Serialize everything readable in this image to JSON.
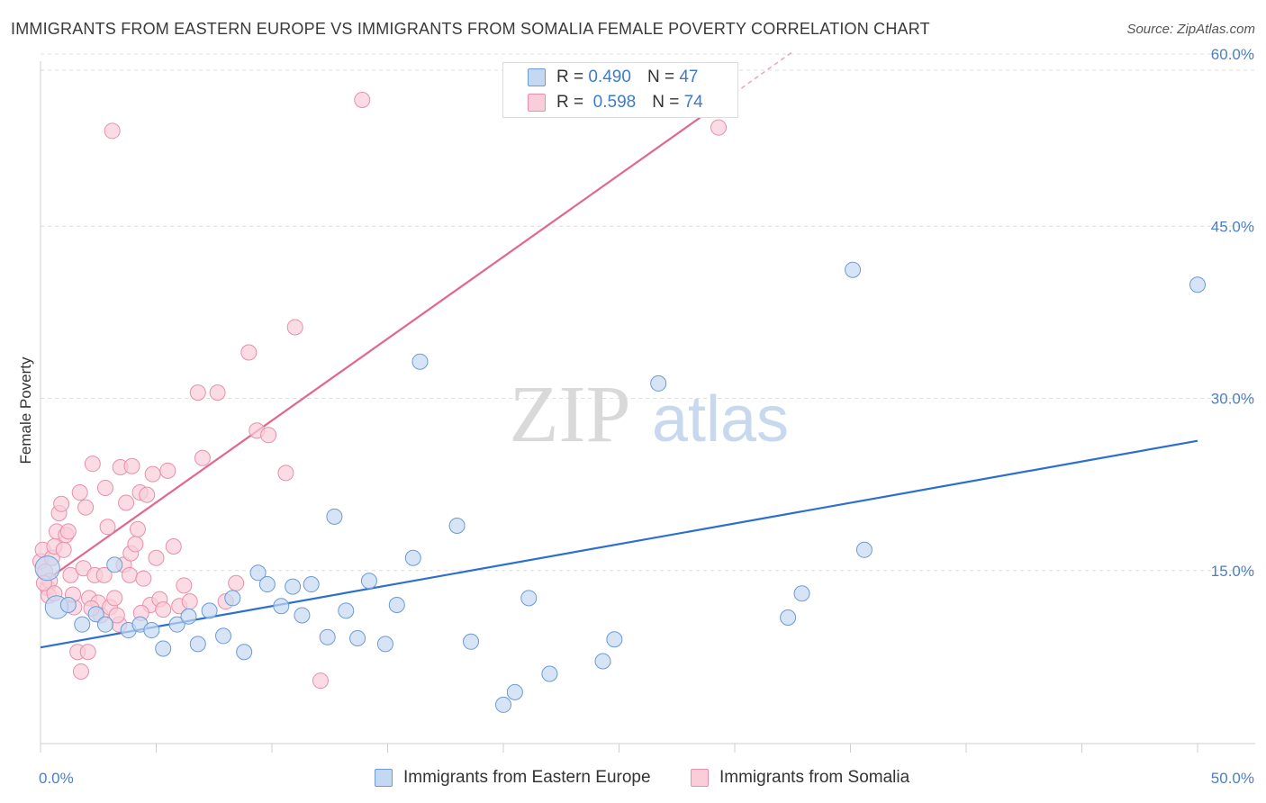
{
  "header": {
    "title": "IMMIGRANTS FROM EASTERN EUROPE VS IMMIGRANTS FROM SOMALIA FEMALE POVERTY CORRELATION CHART",
    "source": "Source: ZipAtlas.com"
  },
  "legend": {
    "r_label": "R =",
    "n_label": "N =",
    "rows": [
      {
        "r": "0.490",
        "n": "47"
      },
      {
        "r": "0.598",
        "n": "74"
      }
    ]
  },
  "watermark": {
    "zip": "ZIP",
    "atlas": "atlas"
  },
  "colors": {
    "blue_fill": "#c5d8f2",
    "blue_stroke": "#6b9bd8",
    "blue_line": "#2b6fcf",
    "pink_fill": "#f9cdd9",
    "pink_stroke": "#e98fab",
    "pink_line": "#e2678f"
  },
  "chart_data": {
    "type": "scatter",
    "title": "IMMIGRANTS FROM EASTERN EUROPE VS IMMIGRANTS FROM SOMALIA FEMALE POVERTY CORRELATION CHART",
    "xlabel": "",
    "ylabel": "Female Poverty",
    "xlim": [
      0,
      50
    ],
    "ylim": [
      0,
      64
    ],
    "x_tick_labels": [
      "0.0%",
      "50.0%"
    ],
    "y_ticks": [
      15,
      30,
      45,
      60
    ],
    "y_tick_labels": [
      "15.0%",
      "30.0%",
      "45.0%",
      "60.0%"
    ],
    "grid": true,
    "legend_position": "top-center",
    "series": [
      {
        "name": "Immigrants from Eastern Europe",
        "r": 0.49,
        "n": 47,
        "trend": {
          "x0": 0,
          "y0": 8.3,
          "x1": 50,
          "y1": 26.3
        },
        "points": [
          [
            0.3,
            15.2,
            1.6
          ],
          [
            0.7,
            11.8,
            1.5
          ],
          [
            1.2,
            12.0,
            1
          ],
          [
            1.8,
            10.3,
            1
          ],
          [
            2.4,
            11.2,
            1
          ],
          [
            2.8,
            10.3,
            1
          ],
          [
            3.2,
            15.5,
            1
          ],
          [
            3.8,
            9.8,
            1
          ],
          [
            4.3,
            10.3,
            1
          ],
          [
            4.8,
            9.8,
            1
          ],
          [
            5.3,
            8.2,
            1
          ],
          [
            5.9,
            10.3,
            1
          ],
          [
            6.4,
            11.0,
            1
          ],
          [
            6.8,
            8.6,
            1
          ],
          [
            7.3,
            11.5,
            1
          ],
          [
            7.9,
            9.3,
            1
          ],
          [
            8.3,
            12.6,
            1
          ],
          [
            8.8,
            7.9,
            1
          ],
          [
            9.4,
            14.8,
            1
          ],
          [
            9.8,
            13.8,
            1
          ],
          [
            10.4,
            11.9,
            1
          ],
          [
            10.9,
            13.6,
            1
          ],
          [
            11.3,
            11.1,
            1
          ],
          [
            11.7,
            13.8,
            1
          ],
          [
            12.4,
            9.2,
            1
          ],
          [
            12.7,
            19.7,
            1
          ],
          [
            13.2,
            11.5,
            1
          ],
          [
            13.7,
            9.1,
            1
          ],
          [
            14.2,
            14.1,
            1
          ],
          [
            14.9,
            8.6,
            1
          ],
          [
            15.4,
            12.0,
            1
          ],
          [
            16.1,
            16.1,
            1
          ],
          [
            16.4,
            33.2,
            1
          ],
          [
            18.0,
            18.9,
            1
          ],
          [
            18.6,
            8.8,
            1
          ],
          [
            20.0,
            3.3,
            1
          ],
          [
            20.5,
            4.4,
            1
          ],
          [
            21.1,
            12.6,
            1
          ],
          [
            22.0,
            6.0,
            1
          ],
          [
            24.3,
            7.1,
            1
          ],
          [
            24.8,
            9.0,
            1
          ],
          [
            26.7,
            31.3,
            1
          ],
          [
            32.3,
            10.9,
            1
          ],
          [
            32.9,
            13.0,
            1
          ],
          [
            35.1,
            41.2,
            1
          ],
          [
            35.6,
            16.8,
            1
          ],
          [
            50.0,
            39.9,
            1
          ]
        ]
      },
      {
        "name": "Immigrants from Somalia",
        "r": 0.598,
        "n": 74,
        "trend": {
          "x0": 0,
          "y0": 13.8,
          "x1": 30,
          "y1": 56.6
        },
        "trend_dashed_to": {
          "x": 32.5,
          "y": 60.2
        },
        "points": [
          [
            0.0,
            15.8,
            1
          ],
          [
            0.1,
            16.8,
            1
          ],
          [
            0.2,
            14.9,
            1
          ],
          [
            0.3,
            13.5,
            1
          ],
          [
            0.35,
            12.8,
            1
          ],
          [
            0.4,
            14.1,
            1
          ],
          [
            0.5,
            16.1,
            1
          ],
          [
            0.6,
            17.1,
            1
          ],
          [
            0.7,
            18.4,
            1
          ],
          [
            0.8,
            20.0,
            1
          ],
          [
            0.9,
            20.8,
            1
          ],
          [
            1.0,
            16.8,
            1
          ],
          [
            1.1,
            18.1,
            1
          ],
          [
            1.2,
            18.4,
            1
          ],
          [
            1.3,
            14.6,
            1
          ],
          [
            1.45,
            11.8,
            1
          ],
          [
            1.6,
            7.9,
            1
          ],
          [
            1.7,
            21.8,
            1
          ],
          [
            1.75,
            6.2,
            1
          ],
          [
            1.85,
            15.2,
            1
          ],
          [
            1.95,
            20.5,
            1
          ],
          [
            2.05,
            7.9,
            1
          ],
          [
            2.1,
            12.6,
            1
          ],
          [
            2.25,
            24.3,
            1
          ],
          [
            2.35,
            14.6,
            1
          ],
          [
            2.5,
            12.2,
            1
          ],
          [
            2.6,
            11.1,
            1
          ],
          [
            2.75,
            14.6,
            1
          ],
          [
            2.8,
            22.2,
            1
          ],
          [
            2.9,
            18.8,
            1
          ],
          [
            3.0,
            11.8,
            1
          ],
          [
            3.1,
            53.3,
            1
          ],
          [
            3.2,
            12.6,
            1
          ],
          [
            3.4,
            10.3,
            1
          ],
          [
            3.45,
            24.0,
            1
          ],
          [
            3.6,
            15.5,
            1
          ],
          [
            3.7,
            20.9,
            1
          ],
          [
            3.85,
            14.6,
            1
          ],
          [
            3.9,
            16.5,
            1
          ],
          [
            3.95,
            24.1,
            1
          ],
          [
            4.1,
            17.3,
            1
          ],
          [
            4.2,
            18.6,
            1
          ],
          [
            4.3,
            21.8,
            1
          ],
          [
            4.45,
            14.3,
            1
          ],
          [
            4.6,
            21.6,
            1
          ],
          [
            4.75,
            12.0,
            1
          ],
          [
            4.85,
            23.4,
            1
          ],
          [
            5.0,
            16.1,
            1
          ],
          [
            5.15,
            12.5,
            1
          ],
          [
            5.3,
            11.6,
            1
          ],
          [
            5.5,
            23.7,
            1
          ],
          [
            5.75,
            17.1,
            1
          ],
          [
            6.0,
            11.9,
            1
          ],
          [
            6.2,
            13.7,
            1
          ],
          [
            6.45,
            12.3,
            1
          ],
          [
            6.8,
            30.5,
            1
          ],
          [
            7.0,
            24.8,
            1
          ],
          [
            7.65,
            30.5,
            1
          ],
          [
            8.0,
            12.3,
            1
          ],
          [
            8.45,
            13.9,
            1
          ],
          [
            9.0,
            34.0,
            1
          ],
          [
            9.35,
            27.2,
            1
          ],
          [
            9.85,
            26.8,
            1
          ],
          [
            10.6,
            23.5,
            1
          ],
          [
            11.0,
            36.2,
            1
          ],
          [
            12.1,
            5.4,
            1
          ],
          [
            13.9,
            56.0,
            1
          ],
          [
            29.3,
            53.6,
            1
          ],
          [
            0.15,
            13.9,
            1
          ],
          [
            0.6,
            13.0,
            1
          ],
          [
            1.4,
            12.9,
            1
          ],
          [
            2.2,
            11.7,
            1
          ],
          [
            3.3,
            11.1,
            1
          ],
          [
            4.35,
            11.3,
            1
          ]
        ]
      }
    ]
  },
  "bottom_legend": [
    {
      "label": "Immigrants from Eastern Europe"
    },
    {
      "label": "Immigrants from Somalia"
    }
  ]
}
